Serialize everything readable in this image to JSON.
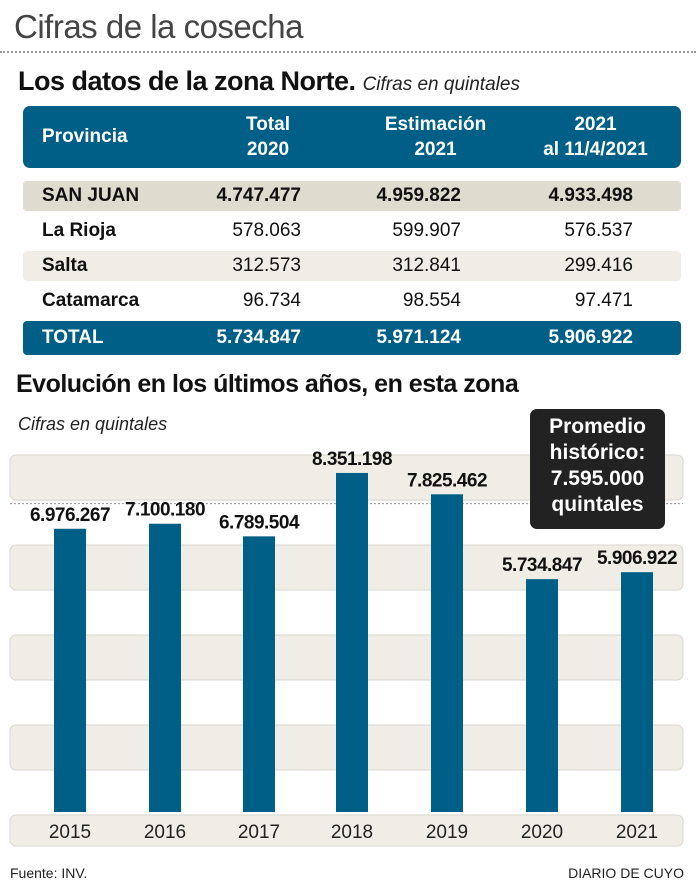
{
  "title": "Cifras de la cosecha",
  "table_section": {
    "title": "Los datos de la zona Norte.",
    "subtitle": "Cifras en quintales",
    "headers": [
      "Provincia",
      "Total\n2020",
      "Estimación\n2021",
      "2021\nal 11/4/2021"
    ],
    "header_lines": [
      [
        "Provincia"
      ],
      [
        "Total",
        "2020"
      ],
      [
        "Estimación",
        "2021"
      ],
      [
        "2021",
        "al 11/4/2021"
      ]
    ],
    "rows": [
      [
        "SAN JUAN",
        "4.747.477",
        "4.959.822",
        "4.933.498"
      ],
      [
        "La Rioja",
        "578.063",
        "599.907",
        "576.537"
      ],
      [
        "Salta",
        "312.573",
        "312.841",
        "299.416"
      ],
      [
        "Catamarca",
        "96.734",
        "98.554",
        "97.471"
      ],
      [
        "TOTAL",
        "5.734.847",
        "5.971.124",
        "5.906.922"
      ]
    ]
  },
  "chart_section": {
    "title": "Evolución en los últimos años, en esta zona",
    "subtitle": "Cifras en quintales",
    "average_box": [
      "Promedio",
      "histórico:",
      "7.595.000",
      "quintales"
    ]
  },
  "chart_data": {
    "type": "bar",
    "title": "Evolución en los últimos años, en esta zona",
    "ylabel": "Cifras en quintales",
    "categories": [
      "2015",
      "2016",
      "2017",
      "2018",
      "2019",
      "2020",
      "2021"
    ],
    "values": [
      6976267,
      7100180,
      6789504,
      8351198,
      7825462,
      5734847,
      5906922
    ],
    "labels": [
      "6.976.267",
      "7.100.180",
      "6.789.504",
      "8.351.198",
      "7.825.462",
      "5.734.847",
      "5.906.922"
    ],
    "average": 7595000,
    "ylim": [
      0,
      8800000
    ],
    "bar_color": "#005f87"
  },
  "footer": {
    "source": "Fuente: INV.",
    "credit": "DIARIO DE CUYO"
  }
}
